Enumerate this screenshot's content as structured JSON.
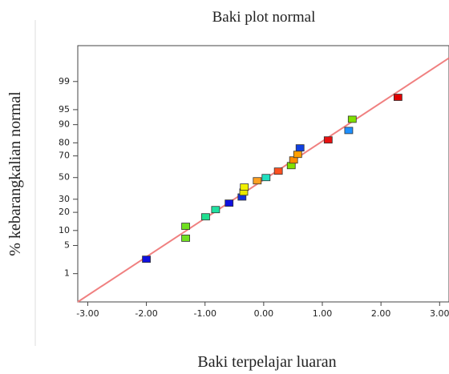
{
  "chart_data": {
    "type": "scatter",
    "title": "Baki plot normal",
    "x_label": "Baki terpelajar luaran",
    "y_label": "% kebarangkalian normal",
    "y_scale": "probability",
    "x": [
      -2.0,
      -1.33,
      -1.33,
      -0.99,
      -0.82,
      -0.59,
      -0.37,
      -0.34,
      -0.33,
      -0.11,
      0.04,
      0.25,
      0.47,
      0.51,
      0.58,
      0.62,
      1.1,
      1.45,
      1.51,
      2.29
    ],
    "values": [
      2.4,
      7.1,
      11.9,
      17.1,
      21.9,
      26.8,
      31.9,
      36.3,
      40.9,
      46.9,
      50,
      56.2,
      61.4,
      66.5,
      71.3,
      76.4,
      81.9,
      87.3,
      92.1,
      97.4
    ],
    "colors": [
      "#1010e0",
      "#70e020",
      "#70e020",
      "#20e090",
      "#20e0a0",
      "#1010e0",
      "#1030e0",
      "#e8e800",
      "#f0f000",
      "#ffa020",
      "#20e0c0",
      "#ff5020",
      "#80e000",
      "#ff8c00",
      "#ffa000",
      "#1040e0",
      "#e81010",
      "#1e90ff",
      "#80e000",
      "#e00000"
    ],
    "reference_line": {
      "x": [
        -3.17,
        3.16
      ],
      "y": [
        0.13,
        99.81
      ],
      "color": "#f08080"
    },
    "xlim": [
      -3.17,
      3.16
    ],
    "ylim": [
      0.13,
      99.93
    ],
    "xticks": [
      {
        "value": -3,
        "label": "-3.00"
      },
      {
        "value": -2,
        "label": "-2.00"
      },
      {
        "value": -1,
        "label": "-1.00"
      },
      {
        "value": 0,
        "label": "0.00"
      },
      {
        "value": 1,
        "label": "1.00"
      },
      {
        "value": 2,
        "label": "2.00"
      },
      {
        "value": 3,
        "label": "3.00"
      }
    ],
    "yticks": [
      1,
      5,
      10,
      20,
      30,
      50,
      70,
      80,
      90,
      95,
      99
    ]
  }
}
